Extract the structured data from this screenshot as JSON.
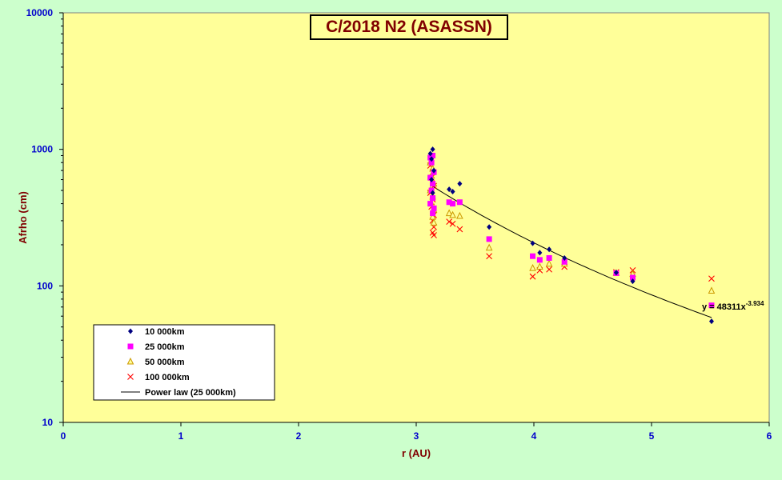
{
  "chart_data": {
    "type": "scatter",
    "title": "C/2018 N2 (ASASSN)",
    "xlabel": "r (AU)",
    "ylabel": "Afrho (cm)",
    "xlim": [
      0,
      6
    ],
    "ylim": [
      10,
      10000
    ],
    "y_scale": "log",
    "x_ticks": [
      "0",
      "1",
      "2",
      "3",
      "4",
      "5",
      "6"
    ],
    "y_ticks": [
      "10",
      "100",
      "1000",
      "10000"
    ],
    "grid": false,
    "legend_position": "bottom-left",
    "colors": {
      "plot_bg": "#ffff99",
      "page_bg": "#ccffcc",
      "axis_text": "#0000cc",
      "label_text": "#800000",
      "s10k": "#000080",
      "s25k": "#ff00ff",
      "s50k": "#cc9900",
      "s100k": "#ff0000",
      "trend": "#000000"
    },
    "series": [
      {
        "name": "10 000km",
        "marker": "diamond",
        "points": [
          [
            3.12,
            930
          ],
          [
            3.14,
            1000
          ],
          [
            3.13,
            850
          ],
          [
            3.15,
            700
          ],
          [
            3.13,
            600
          ],
          [
            3.14,
            480
          ],
          [
            3.28,
            510
          ],
          [
            3.31,
            490
          ],
          [
            3.37,
            560
          ],
          [
            3.62,
            270
          ],
          [
            3.99,
            205
          ],
          [
            4.05,
            175
          ],
          [
            4.13,
            185
          ],
          [
            4.26,
            160
          ],
          [
            4.7,
            125
          ],
          [
            4.84,
            108
          ],
          [
            5.51,
            55
          ]
        ]
      },
      {
        "name": "25 000km",
        "marker": "square",
        "points": [
          [
            3.12,
            870
          ],
          [
            3.14,
            900
          ],
          [
            3.13,
            800
          ],
          [
            3.15,
            680
          ],
          [
            3.12,
            620
          ],
          [
            3.14,
            560
          ],
          [
            3.13,
            500
          ],
          [
            3.14,
            440
          ],
          [
            3.12,
            400
          ],
          [
            3.15,
            370
          ],
          [
            3.14,
            340
          ],
          [
            3.28,
            410
          ],
          [
            3.31,
            400
          ],
          [
            3.37,
            410
          ],
          [
            3.62,
            220
          ],
          [
            3.99,
            165
          ],
          [
            4.05,
            155
          ],
          [
            4.13,
            160
          ],
          [
            4.26,
            150
          ],
          [
            4.7,
            124
          ],
          [
            4.84,
            115
          ],
          [
            5.51,
            72
          ]
        ]
      },
      {
        "name": "50 000km",
        "marker": "triangle",
        "points": [
          [
            3.12,
            800
          ],
          [
            3.14,
            720
          ],
          [
            3.13,
            640
          ],
          [
            3.15,
            560
          ],
          [
            3.12,
            500
          ],
          [
            3.14,
            450
          ],
          [
            3.13,
            400
          ],
          [
            3.15,
            360
          ],
          [
            3.14,
            320
          ],
          [
            3.15,
            290
          ],
          [
            3.28,
            340
          ],
          [
            3.31,
            330
          ],
          [
            3.37,
            325
          ],
          [
            3.62,
            190
          ],
          [
            3.99,
            135
          ],
          [
            4.05,
            138
          ],
          [
            4.13,
            145
          ],
          [
            4.26,
            145
          ],
          [
            4.7,
            124
          ],
          [
            4.84,
            122
          ],
          [
            5.51,
            92
          ]
        ]
      },
      {
        "name": "100 000km",
        "marker": "x",
        "points": [
          [
            3.12,
            760
          ],
          [
            3.14,
            680
          ],
          [
            3.13,
            620
          ],
          [
            3.15,
            540
          ],
          [
            3.12,
            480
          ],
          [
            3.14,
            430
          ],
          [
            3.13,
            380
          ],
          [
            3.15,
            330
          ],
          [
            3.14,
            300
          ],
          [
            3.15,
            270
          ],
          [
            3.14,
            245
          ],
          [
            3.15,
            235
          ],
          [
            3.28,
            295
          ],
          [
            3.31,
            285
          ],
          [
            3.37,
            260
          ],
          [
            3.62,
            165
          ],
          [
            3.99,
            117
          ],
          [
            4.05,
            130
          ],
          [
            4.13,
            132
          ],
          [
            4.26,
            138
          ],
          [
            4.7,
            126
          ],
          [
            4.84,
            130
          ],
          [
            5.51,
            113
          ]
        ]
      }
    ],
    "trendline": {
      "name": "Power law (25 000km)",
      "coefficient": 48311,
      "exponent": -3.934,
      "x_range": [
        3.12,
        5.51
      ],
      "equation_prefix": "y = 48311x",
      "equation_exponent": "-3.934"
    }
  }
}
